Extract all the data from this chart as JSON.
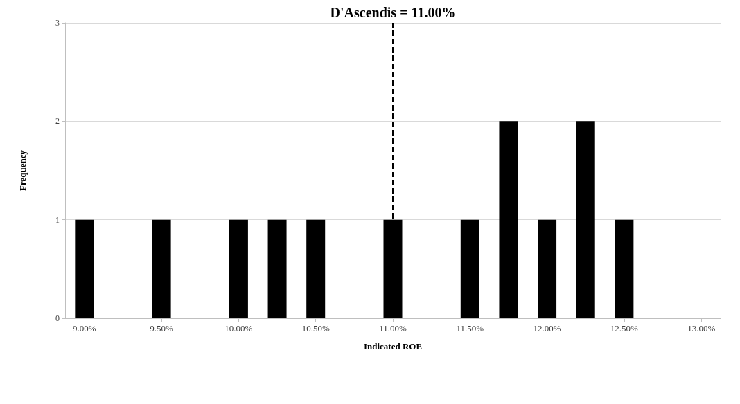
{
  "chart_data": {
    "type": "bar",
    "xlabel": "Indicated ROE",
    "ylabel": "Frequency",
    "x": [
      9.0,
      9.5,
      10.0,
      10.25,
      10.5,
      11.0,
      11.5,
      11.75,
      12.0,
      12.25,
      12.5
    ],
    "values": [
      1,
      1,
      1,
      1,
      1,
      1,
      1,
      2,
      1,
      2,
      1
    ],
    "color": "#000000",
    "xlim": [
      8.875,
      13.125
    ],
    "xticks": [
      {
        "value": 9.0,
        "label": "9.00%"
      },
      {
        "value": 9.5,
        "label": "9.50%"
      },
      {
        "value": 10.0,
        "label": "10.00%"
      },
      {
        "value": 10.5,
        "label": "10.50%"
      },
      {
        "value": 11.0,
        "label": "11.00%"
      },
      {
        "value": 11.5,
        "label": "11.50%"
      },
      {
        "value": 12.0,
        "label": "12.00%"
      },
      {
        "value": 12.5,
        "label": "12.50%"
      },
      {
        "value": 13.0,
        "label": "13.00%"
      }
    ],
    "ylim": [
      0,
      3
    ],
    "yticks": [
      0,
      1,
      2,
      3
    ],
    "grid": "y",
    "ref_lines": [
      {
        "axis": "x",
        "value": 11.0,
        "label": "D'Ascendis = 11.00%",
        "color": "#000000",
        "line_style": "dashed"
      }
    ]
  }
}
